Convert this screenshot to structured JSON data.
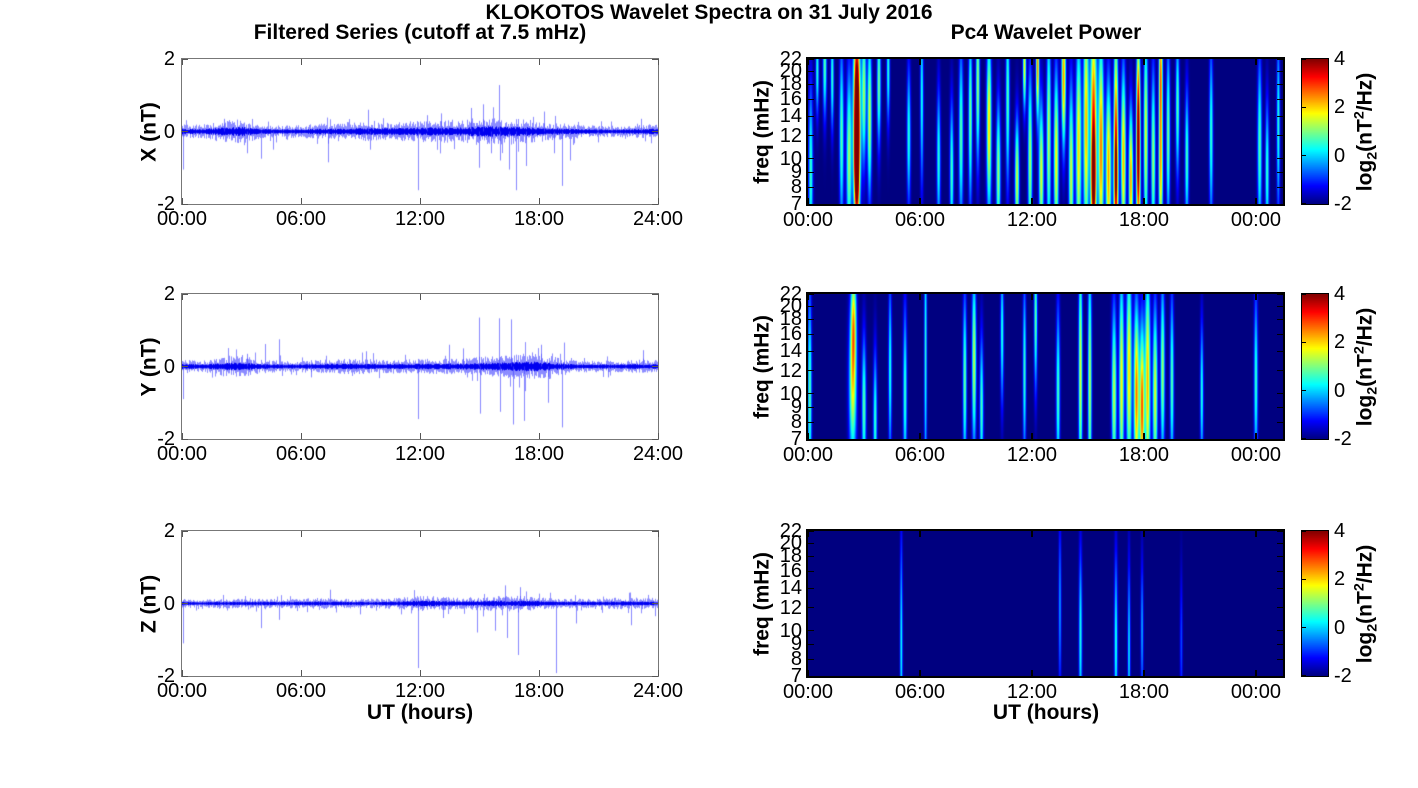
{
  "figure": {
    "title": "KLOKOTOS Wavelet Spectra on 31 July 2016",
    "left_title": "Filtered Series (cutoff at 7.5 mHz)",
    "right_title": "Pc4 Wavelet Power",
    "xlabel": "UT (hours)",
    "colorbar_label": {
      "pre": "log",
      "sub": "2",
      "mid": "(nT",
      "sup": "2",
      "post": "/Hz)"
    },
    "colors": {
      "line_blue": "#0000ff",
      "spectrogram_background": "#000080",
      "axis_color": "#000000",
      "background": "#ffffff"
    }
  },
  "chart_data": [
    {
      "type": "line",
      "id": "ts-x",
      "ylabel": "X (nT)",
      "ylim": [
        -2,
        2
      ],
      "ytick_values": [
        2,
        0,
        -2
      ],
      "ytick_labels": [
        "2",
        "0",
        "-2"
      ],
      "xlim_hours": [
        0,
        24
      ],
      "xtick_hours": [
        0,
        6,
        12,
        18,
        24
      ],
      "xtick_labels": [
        "00:00",
        "06:00",
        "12:00",
        "18:00",
        "24:00"
      ],
      "noise_envelope_nT_per_hour": [
        0.08,
        0.07,
        0.11,
        0.13,
        0.07,
        0.06,
        0.07,
        0.08,
        0.08,
        0.1,
        0.09,
        0.1,
        0.11,
        0.12,
        0.11,
        0.15,
        0.14,
        0.13,
        0.11,
        0.09,
        0.07,
        0.06,
        0.06,
        0.07,
        0.08
      ],
      "spikes_t_value": [
        [
          0.07,
          -1.05
        ],
        [
          2.1,
          0.35
        ],
        [
          3.3,
          -0.6
        ],
        [
          4.0,
          -0.75
        ],
        [
          4.6,
          -0.5
        ],
        [
          7.4,
          -0.85
        ],
        [
          9.4,
          0.6
        ],
        [
          9.5,
          -0.5
        ],
        [
          11.9,
          -1.62
        ],
        [
          12.4,
          0.45
        ],
        [
          13.1,
          0.5
        ],
        [
          14.6,
          0.65
        ],
        [
          15.0,
          -1.0
        ],
        [
          15.2,
          0.75
        ],
        [
          15.6,
          -0.6
        ],
        [
          16.0,
          1.28
        ],
        [
          16.05,
          -0.8
        ],
        [
          16.5,
          -1.05
        ],
        [
          16.9,
          -1.62
        ],
        [
          17.4,
          -0.95
        ],
        [
          18.3,
          0.55
        ],
        [
          18.8,
          -0.6
        ],
        [
          19.2,
          -1.5
        ],
        [
          19.6,
          -0.8
        ],
        [
          21.0,
          -0.3
        ],
        [
          23.2,
          0.35
        ]
      ],
      "seed": 42
    },
    {
      "type": "line",
      "id": "ts-y",
      "ylabel": "Y (nT)",
      "ylim": [
        -2,
        2
      ],
      "ytick_values": [
        2,
        0,
        -2
      ],
      "ytick_labels": [
        "2",
        "0",
        "-2"
      ],
      "xlim_hours": [
        0,
        24
      ],
      "xtick_hours": [
        0,
        6,
        12,
        18,
        24
      ],
      "xtick_labels": [
        "00:00",
        "06:00",
        "12:00",
        "18:00",
        "24:00"
      ],
      "noise_envelope_nT_per_hour": [
        0.07,
        0.06,
        0.1,
        0.11,
        0.07,
        0.06,
        0.06,
        0.07,
        0.08,
        0.08,
        0.07,
        0.07,
        0.08,
        0.08,
        0.08,
        0.1,
        0.11,
        0.13,
        0.14,
        0.09,
        0.06,
        0.06,
        0.06,
        0.07,
        0.07
      ],
      "spikes_t_value": [
        [
          0.05,
          -0.9
        ],
        [
          3.3,
          0.35
        ],
        [
          4.2,
          0.62
        ],
        [
          4.9,
          0.75
        ],
        [
          6.5,
          -0.3
        ],
        [
          9.3,
          0.42
        ],
        [
          11.9,
          -1.45
        ],
        [
          13.5,
          0.6
        ],
        [
          14.2,
          0.5
        ],
        [
          15.0,
          1.35
        ],
        [
          15.05,
          -1.3
        ],
        [
          16.0,
          1.33
        ],
        [
          16.05,
          -1.25
        ],
        [
          16.6,
          1.3
        ],
        [
          16.7,
          -1.6
        ],
        [
          17.3,
          -1.5
        ],
        [
          18.15,
          0.6
        ],
        [
          18.5,
          -1.0
        ],
        [
          19.2,
          -1.68
        ],
        [
          19.3,
          0.66
        ],
        [
          21.5,
          -0.3
        ],
        [
          23.3,
          0.45
        ]
      ],
      "seed": 137
    },
    {
      "type": "line",
      "id": "ts-z",
      "ylabel": "Z (nT)",
      "ylim": [
        -2,
        2
      ],
      "ytick_values": [
        2,
        0,
        -2
      ],
      "ytick_labels": [
        "2",
        "0",
        "-2"
      ],
      "xlim_hours": [
        0,
        24
      ],
      "xtick_hours": [
        0,
        6,
        12,
        18,
        24
      ],
      "xtick_labels": [
        "00:00",
        "06:00",
        "12:00",
        "18:00",
        "24:00"
      ],
      "noise_envelope_nT_per_hour": [
        0.05,
        0.04,
        0.05,
        0.05,
        0.05,
        0.05,
        0.05,
        0.06,
        0.05,
        0.05,
        0.05,
        0.06,
        0.08,
        0.07,
        0.06,
        0.07,
        0.08,
        0.08,
        0.07,
        0.05,
        0.05,
        0.05,
        0.06,
        0.06,
        0.05
      ],
      "spikes_t_value": [
        [
          0.06,
          -1.1
        ],
        [
          4.0,
          -0.68
        ],
        [
          4.9,
          -0.45
        ],
        [
          7.5,
          0.38
        ],
        [
          9.0,
          -0.3
        ],
        [
          11.9,
          -1.78
        ],
        [
          13.2,
          -0.4
        ],
        [
          14.9,
          -0.8
        ],
        [
          15.8,
          -0.75
        ],
        [
          16.3,
          0.5
        ],
        [
          16.4,
          -0.95
        ],
        [
          17.0,
          -1.42
        ],
        [
          17.1,
          0.45
        ],
        [
          18.9,
          -1.92
        ],
        [
          19.9,
          -0.55
        ],
        [
          22.7,
          -0.6
        ],
        [
          23.9,
          -0.35
        ]
      ],
      "seed": 901
    },
    {
      "type": "heatmap",
      "id": "wav-x",
      "ylabel": "freq (mHz)",
      "yscale": "log",
      "ylim_mhz": [
        7,
        22
      ],
      "ytick_values": [
        22,
        20,
        18,
        16,
        14,
        12,
        10,
        9,
        8,
        7
      ],
      "xlim_hours": [
        0,
        25.45
      ],
      "xtick_hours": [
        0,
        6,
        12,
        18,
        24
      ],
      "xtick_labels": [
        "00:00",
        "06:00",
        "12:00",
        "18:00",
        "00:00"
      ],
      "colormap": "jet",
      "value_range_log2": [
        -2,
        4
      ],
      "events_t_f_peak_st_sf": [
        [
          0.15,
          9,
          0.6,
          0.08,
          0.5
        ],
        [
          0.5,
          20,
          0.5,
          0.06,
          0.25
        ],
        [
          0.9,
          21,
          0.8,
          0.07,
          0.3
        ],
        [
          1.3,
          19,
          0.6,
          0.06,
          0.3
        ],
        [
          1.8,
          12,
          0.8,
          0.08,
          0.5
        ],
        [
          2.2,
          10,
          1.2,
          0.1,
          0.5
        ],
        [
          2.6,
          16,
          2.6,
          0.12,
          0.45
        ],
        [
          2.6,
          9,
          2.2,
          0.1,
          0.3
        ],
        [
          2.65,
          12.5,
          1.8,
          0.12,
          0.5
        ],
        [
          3.0,
          17,
          1.2,
          0.08,
          0.4
        ],
        [
          3.3,
          14,
          1.5,
          0.08,
          0.45
        ],
        [
          3.8,
          18,
          1.0,
          0.07,
          0.35
        ],
        [
          4.3,
          20,
          0.5,
          0.06,
          0.3
        ],
        [
          5.4,
          12,
          0.5,
          0.07,
          0.4
        ],
        [
          6.1,
          16,
          0.4,
          0.06,
          0.5
        ],
        [
          7.0,
          10,
          0.5,
          0.07,
          0.4
        ],
        [
          7.7,
          9,
          0.7,
          0.07,
          0.4
        ],
        [
          8.2,
          12,
          0.8,
          0.08,
          0.5
        ],
        [
          8.7,
          14,
          1.0,
          0.07,
          0.5
        ],
        [
          9.1,
          18,
          1.2,
          0.07,
          0.45
        ],
        [
          9.7,
          13,
          2.0,
          0.09,
          0.5
        ],
        [
          10.2,
          9,
          1.2,
          0.08,
          0.4
        ],
        [
          10.7,
          16,
          0.8,
          0.07,
          0.5
        ],
        [
          11.2,
          8.5,
          1.5,
          0.08,
          0.35
        ],
        [
          11.6,
          21,
          1.8,
          0.06,
          0.25
        ],
        [
          11.9,
          10,
          1.3,
          0.08,
          0.5
        ],
        [
          12.3,
          21,
          2.4,
          0.06,
          0.3
        ],
        [
          12.5,
          9,
          1.6,
          0.09,
          0.4
        ],
        [
          12.9,
          12,
          1.4,
          0.08,
          0.6
        ],
        [
          13.3,
          10,
          1.8,
          0.09,
          0.5
        ],
        [
          13.7,
          19,
          2.4,
          0.08,
          0.4
        ],
        [
          14.1,
          9,
          1.5,
          0.09,
          0.5
        ],
        [
          14.5,
          11,
          2.0,
          0.1,
          0.6
        ],
        [
          14.9,
          13,
          2.2,
          0.1,
          0.7
        ],
        [
          15.3,
          14,
          2.8,
          0.12,
          0.6
        ],
        [
          15.3,
          8,
          2.2,
          0.1,
          0.3
        ],
        [
          15.7,
          11,
          2.6,
          0.1,
          0.6
        ],
        [
          16.1,
          9,
          2.4,
          0.1,
          0.5
        ],
        [
          16.5,
          8,
          2.6,
          0.09,
          0.35
        ],
        [
          16.5,
          15,
          1.8,
          0.08,
          0.5
        ],
        [
          16.9,
          10,
          2.2,
          0.09,
          0.5
        ],
        [
          17.3,
          8.5,
          2.4,
          0.08,
          0.4
        ],
        [
          17.7,
          9,
          3.0,
          0.08,
          0.45
        ],
        [
          17.7,
          16,
          1.5,
          0.07,
          0.4
        ],
        [
          18.1,
          12,
          1.6,
          0.08,
          0.6
        ],
        [
          18.5,
          10,
          1.2,
          0.08,
          0.5
        ],
        [
          18.9,
          20,
          2.2,
          0.07,
          0.35
        ],
        [
          18.9,
          9,
          2.0,
          0.08,
          0.4
        ],
        [
          19.3,
          12,
          1.0,
          0.07,
          0.5
        ],
        [
          19.8,
          15,
          0.8,
          0.07,
          0.4
        ],
        [
          20.3,
          10,
          0.7,
          0.07,
          0.4
        ],
        [
          21.6,
          12,
          0.6,
          0.07,
          0.5
        ],
        [
          24.2,
          11,
          0.8,
          0.08,
          0.5
        ],
        [
          24.6,
          9,
          0.6,
          0.07,
          0.4
        ],
        [
          25.2,
          13,
          0.5,
          0.06,
          0.5
        ]
      ]
    },
    {
      "type": "heatmap",
      "id": "wav-y",
      "ylabel": "freq (mHz)",
      "yscale": "log",
      "ylim_mhz": [
        7,
        22
      ],
      "ytick_values": [
        22,
        20,
        18,
        16,
        14,
        12,
        10,
        9,
        8,
        7
      ],
      "xlim_hours": [
        0,
        25.45
      ],
      "xtick_hours": [
        0,
        6,
        12,
        18,
        24
      ],
      "xtick_labels": [
        "00:00",
        "06:00",
        "12:00",
        "18:00",
        "00:00"
      ],
      "colormap": "jet",
      "value_range_log2": [
        -2,
        4
      ],
      "events_t_f_peak_st_sf": [
        [
          0.1,
          10,
          0.8,
          0.07,
          0.6
        ],
        [
          2.4,
          11,
          1.6,
          0.14,
          0.45
        ],
        [
          2.45,
          18,
          0.6,
          0.1,
          0.3
        ],
        [
          3.0,
          9,
          0.8,
          0.08,
          0.4
        ],
        [
          3.6,
          8,
          0.6,
          0.07,
          0.4
        ],
        [
          4.4,
          12,
          0.5,
          0.06,
          0.5
        ],
        [
          5.2,
          10,
          0.6,
          0.07,
          0.5
        ],
        [
          6.3,
          14,
          0.5,
          0.05,
          0.8
        ],
        [
          8.4,
          11,
          0.9,
          0.07,
          0.5
        ],
        [
          8.9,
          13,
          1.4,
          0.08,
          0.5
        ],
        [
          9.3,
          9,
          0.7,
          0.07,
          0.4
        ],
        [
          10.4,
          16,
          0.5,
          0.06,
          0.4
        ],
        [
          11.6,
          12,
          0.6,
          0.06,
          0.5
        ],
        [
          12.2,
          18,
          0.9,
          0.06,
          0.4
        ],
        [
          13.4,
          10,
          0.7,
          0.07,
          0.5
        ],
        [
          14.6,
          12,
          1.6,
          0.07,
          0.7
        ],
        [
          15.1,
          11,
          1.4,
          0.07,
          0.7
        ],
        [
          16.4,
          10,
          1.4,
          0.09,
          0.5
        ],
        [
          16.8,
          11,
          1.8,
          0.09,
          0.6
        ],
        [
          17.2,
          12,
          2.0,
          0.1,
          0.6
        ],
        [
          17.6,
          10,
          2.6,
          0.1,
          0.5
        ],
        [
          17.9,
          9,
          2.8,
          0.09,
          0.45
        ],
        [
          18.2,
          11,
          2.2,
          0.1,
          0.6
        ],
        [
          18.6,
          10,
          1.6,
          0.09,
          0.5
        ],
        [
          19.0,
          12,
          1.2,
          0.08,
          0.5
        ],
        [
          19.5,
          11,
          0.8,
          0.07,
          0.5
        ],
        [
          21.1,
          10,
          0.5,
          0.06,
          0.4
        ],
        [
          24.0,
          11,
          0.6,
          0.07,
          0.5
        ]
      ]
    },
    {
      "type": "heatmap",
      "id": "wav-z",
      "ylabel": "freq (mHz)",
      "yscale": "log",
      "ylim_mhz": [
        7,
        22
      ],
      "ytick_values": [
        22,
        20,
        18,
        16,
        14,
        12,
        10,
        9,
        8,
        7
      ],
      "xlim_hours": [
        0,
        25.45
      ],
      "xtick_hours": [
        0,
        6,
        12,
        18,
        24
      ],
      "xtick_labels": [
        "00:00",
        "06:00",
        "12:00",
        "18:00",
        "00:00"
      ],
      "colormap": "jet",
      "value_range_log2": [
        -2,
        4
      ],
      "events_t_f_peak_st_sf": [
        [
          5.0,
          9,
          0.3,
          0.05,
          0.6
        ],
        [
          13.5,
          12,
          -0.3,
          0.05,
          0.5
        ],
        [
          14.6,
          9.5,
          0.4,
          0.06,
          0.5
        ],
        [
          16.5,
          9,
          0.5,
          0.06,
          0.5
        ],
        [
          17.2,
          8.5,
          0.2,
          0.05,
          0.5
        ],
        [
          17.9,
          10,
          -0.2,
          0.05,
          0.4
        ],
        [
          20.0,
          9,
          -0.8,
          0.05,
          0.4
        ]
      ]
    }
  ],
  "colorbar": {
    "tick_values": [
      4,
      2,
      0,
      -2
    ],
    "tick_labels": [
      "4",
      "2",
      "0",
      "-2"
    ],
    "vmin": -2,
    "vmax": 4
  }
}
